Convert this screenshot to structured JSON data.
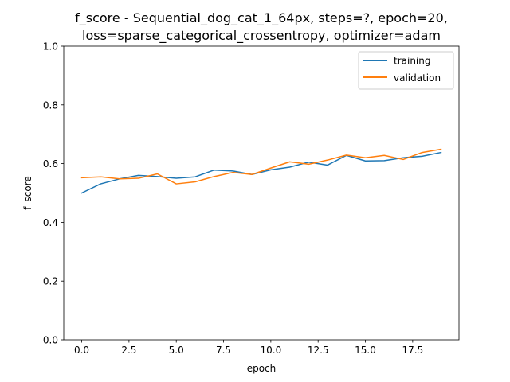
{
  "chart_data": {
    "type": "line",
    "title_line1": "f_score - Sequential_dog_cat_1_64px, steps=?, epoch=20,",
    "title_line2": "loss=sparse_categorical_crossentropy, optimizer=adam",
    "xlabel": "epoch",
    "ylabel": "f_score",
    "xlim": [
      -0.95,
      19.95
    ],
    "ylim": [
      0.0,
      1.0
    ],
    "xticks": [
      0.0,
      2.5,
      5.0,
      7.5,
      10.0,
      12.5,
      15.0,
      17.5
    ],
    "xtick_labels": [
      "0.0",
      "2.5",
      "5.0",
      "7.5",
      "10.0",
      "12.5",
      "15.0",
      "17.5"
    ],
    "yticks": [
      0.0,
      0.2,
      0.4,
      0.6,
      0.8,
      1.0
    ],
    "ytick_labels": [
      "0.0",
      "0.2",
      "0.4",
      "0.6",
      "0.8",
      "1.0"
    ],
    "grid": false,
    "legend_position": "top-right",
    "x": [
      0,
      1,
      2,
      3,
      4,
      5,
      6,
      7,
      8,
      9,
      10,
      11,
      12,
      13,
      14,
      15,
      16,
      17,
      18,
      19
    ],
    "series": [
      {
        "name": "training",
        "color": "#1f77b4",
        "values": [
          0.5,
          0.531,
          0.548,
          0.56,
          0.556,
          0.55,
          0.555,
          0.578,
          0.575,
          0.563,
          0.579,
          0.588,
          0.605,
          0.595,
          0.628,
          0.609,
          0.61,
          0.62,
          0.625,
          0.638
        ]
      },
      {
        "name": "validation",
        "color": "#ff7f0e",
        "values": [
          0.552,
          0.555,
          0.548,
          0.55,
          0.565,
          0.531,
          0.538,
          0.556,
          0.57,
          0.563,
          0.585,
          0.606,
          0.598,
          0.612,
          0.629,
          0.62,
          0.628,
          0.614,
          0.638,
          0.649
        ]
      }
    ]
  }
}
